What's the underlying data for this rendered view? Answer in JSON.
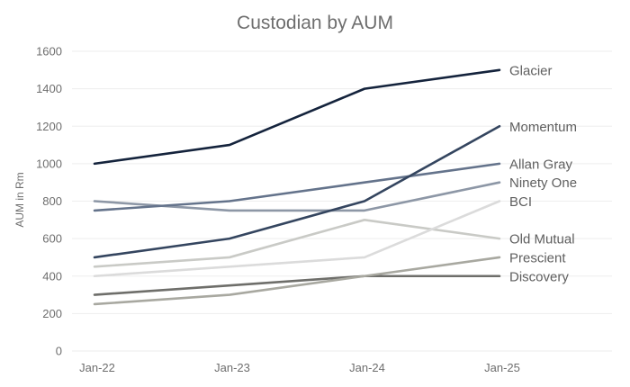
{
  "chart_data": {
    "type": "line",
    "title": "Custodian by AUM",
    "xlabel": "",
    "ylabel": "AUM in Rm",
    "categories": [
      "Jan-22",
      "Jan-23",
      "Jan-24",
      "Jan-25"
    ],
    "ylim": [
      0,
      1600
    ],
    "yticks": [
      0,
      200,
      400,
      600,
      800,
      1000,
      1200,
      1400,
      1600
    ],
    "grid": true,
    "legend": "end-of-line labels",
    "series": [
      {
        "name": "Glacier",
        "values": [
          1000,
          1100,
          1400,
          1500
        ],
        "color": "#14233c"
      },
      {
        "name": "Momentum",
        "values": [
          500,
          600,
          800,
          1200
        ],
        "color": "#34455f"
      },
      {
        "name": "Allan Gray",
        "values": [
          750,
          800,
          900,
          1000
        ],
        "color": "#64738b"
      },
      {
        "name": "Ninety One",
        "values": [
          800,
          750,
          750,
          900
        ],
        "color": "#8d97a6"
      },
      {
        "name": "BCI",
        "values": [
          400,
          450,
          500,
          800
        ],
        "color": "#dbdbdb"
      },
      {
        "name": "Old Mutual",
        "values": [
          450,
          500,
          700,
          600
        ],
        "color": "#c9cac6"
      },
      {
        "name": "Prescient",
        "values": [
          250,
          300,
          400,
          500
        ],
        "color": "#a8a8a0"
      },
      {
        "name": "Discovery",
        "values": [
          300,
          350,
          400,
          400
        ],
        "color": "#6e6e6a"
      }
    ]
  }
}
